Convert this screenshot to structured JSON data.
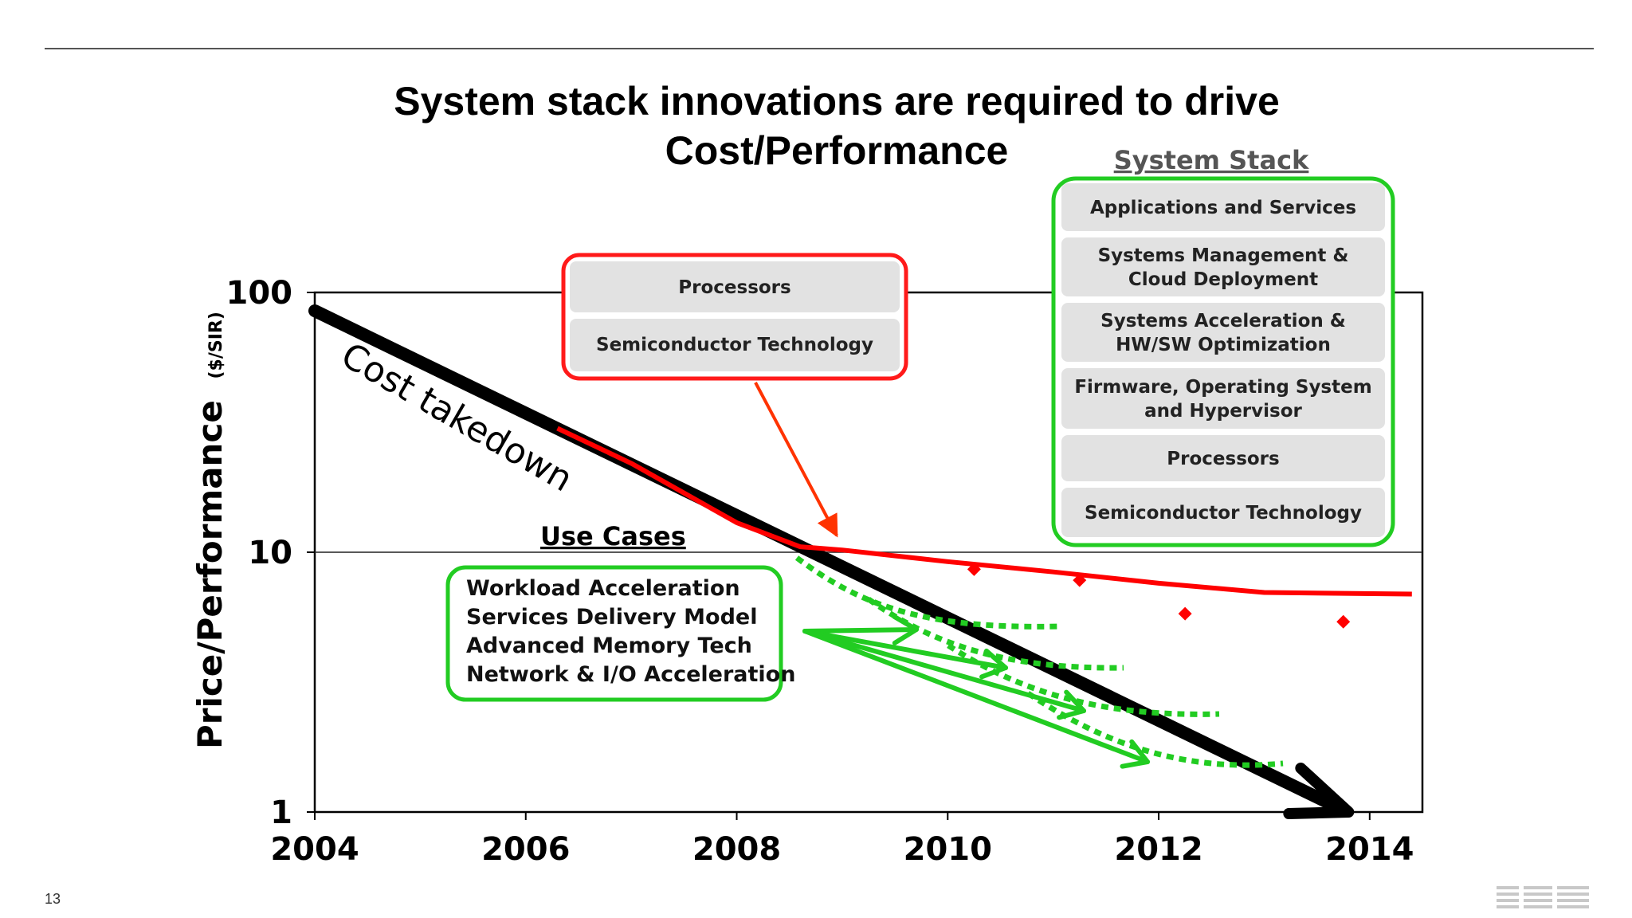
{
  "slide": {
    "title_line1": "System stack innovations are required to drive",
    "title_line2": "Cost/Performance",
    "number": "13",
    "logo": "IBM"
  },
  "chart_data": {
    "type": "line",
    "xlabel": "",
    "ylabel": "Price/Performance",
    "ylabel_unit": "($/SIR)",
    "xlim": [
      2004,
      2014.5
    ],
    "ylim": [
      1,
      100
    ],
    "yscale": "log",
    "x_ticks": [
      "2004",
      "2006",
      "2008",
      "2010",
      "2012",
      "2014"
    ],
    "y_ticks": [
      "1",
      "10",
      "100"
    ],
    "grid": "horizontal at 10",
    "series": [
      {
        "role": "cost-takedown-trend",
        "color": "#000000",
        "x": [
          2004,
          2013.8
        ],
        "y": [
          85,
          1.0
        ]
      },
      {
        "role": "semiconductor-trend",
        "color": "#ff0000",
        "x": [
          2006.3,
          2007,
          2008,
          2008.6,
          2009,
          2010,
          2011,
          2012,
          2013,
          2014.4
        ],
        "y": [
          30,
          22,
          13,
          10.5,
          10.2,
          9.2,
          8.4,
          7.6,
          7.0,
          6.9
        ]
      },
      {
        "role": "semiconductor-points",
        "color": "#ff0000",
        "x": [
          2010.25,
          2011.25,
          2012.25,
          2013.75
        ],
        "y": [
          8.6,
          7.8,
          5.8,
          5.4
        ]
      }
    ],
    "annotations": {
      "cost_takedown": "Cost takedown",
      "use_cases_title": "Use Cases",
      "use_cases": [
        "Workload Acceleration",
        "Services Delivery Model",
        "Advanced Memory Tech",
        "Network & I/O Acceleration"
      ],
      "semi_stack": [
        "Processors",
        "Semiconductor Technology"
      ],
      "system_stack_title": "System Stack",
      "system_stack": [
        [
          "Applications and Services"
        ],
        [
          "Systems Management &",
          "Cloud Deployment"
        ],
        [
          "Systems Acceleration &",
          "HW/SW Optimization"
        ],
        [
          "Firmware, Operating System",
          "and Hypervisor"
        ],
        [
          "Processors"
        ],
        [
          "Semiconductor Technology"
        ]
      ]
    },
    "colors": {
      "semiconductor": "#ff0000",
      "use_case": "#22cc22",
      "trend": "#000000",
      "layer": "#e2e2e2"
    }
  }
}
